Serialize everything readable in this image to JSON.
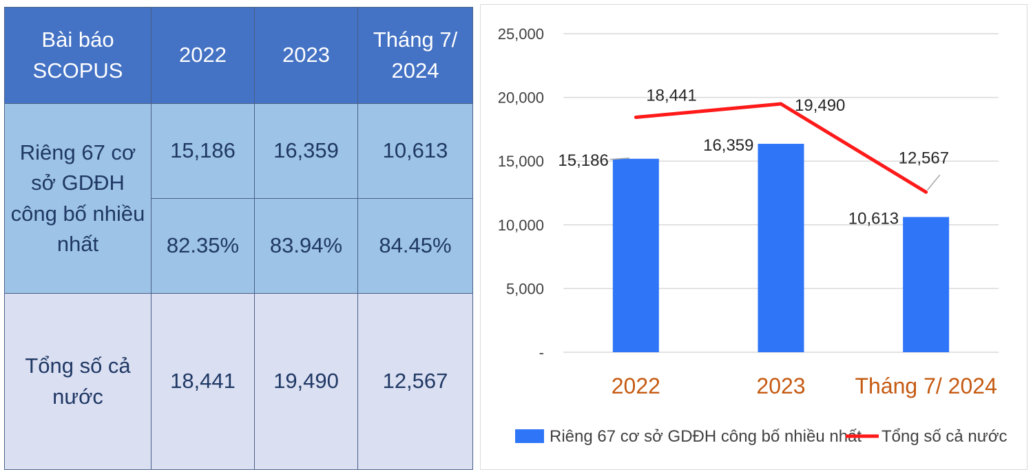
{
  "table": {
    "header": {
      "label": "Bài báo SCOPUS",
      "col1": "2022",
      "col2": "2023",
      "col3": "Tháng 7/ 2024"
    },
    "group_label": "Riêng 67 cơ sở GDĐH công bố nhiều nhất",
    "row1": [
      "15,186",
      "16,359",
      "10,613"
    ],
    "row2": [
      "82.35%",
      "83.94%",
      "84.45%"
    ],
    "total_label": "Tổng số cả nước",
    "row3": [
      "18,441",
      "19,490",
      "12,567"
    ]
  },
  "chart_data": {
    "type": "bar",
    "categories": [
      "2022",
      "2023",
      "Tháng 7/ 2024"
    ],
    "series": [
      {
        "name": "Riêng 67 cơ sở GDĐH công bố nhiều nhất",
        "kind": "bar",
        "color": "#2f75f7",
        "values": [
          15186,
          16359,
          10613
        ],
        "labels": [
          "15,186",
          "16,359",
          "10,613"
        ]
      },
      {
        "name": "Tổng số cả nước",
        "kind": "line",
        "color": "#ff1a1a",
        "values": [
          18441,
          19490,
          12567
        ],
        "labels": [
          "18,441",
          "19,490",
          "12,567"
        ]
      }
    ],
    "yticks": [
      "-",
      "5,000",
      "10,000",
      "15,000",
      "20,000",
      "25,000"
    ],
    "ylim": [
      0,
      25000
    ],
    "grid": true,
    "legend": "bottom",
    "category_color": "#c55a11"
  }
}
